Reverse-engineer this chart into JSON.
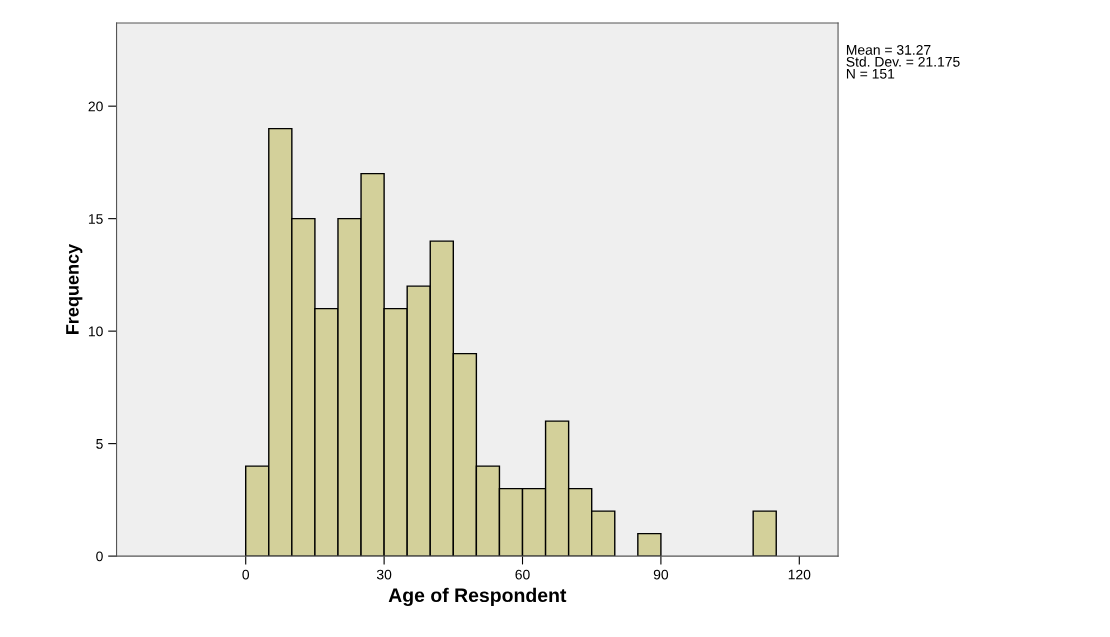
{
  "chart_data": {
    "type": "histogram",
    "xlabel": "Age of Respondent",
    "ylabel": "Frequency",
    "bins": [
      0,
      5,
      10,
      15,
      20,
      25,
      30,
      35,
      40,
      45,
      50,
      55,
      60,
      65,
      70,
      75,
      80,
      85,
      90,
      95,
      100,
      105,
      110,
      115
    ],
    "values": [
      4,
      19,
      15,
      11,
      15,
      17,
      11,
      12,
      14,
      9,
      4,
      3,
      3,
      6,
      3,
      2,
      0,
      1,
      0,
      0,
      0,
      0,
      2
    ],
    "color": "#d3d09a",
    "xlim": [
      -28,
      128.4
    ],
    "xticks": [
      0,
      30,
      60,
      90,
      120
    ],
    "ylim": [
      0,
      23.7
    ],
    "yticks": [
      0,
      5,
      10,
      15,
      20
    ],
    "grid": false,
    "annotations": [
      "Mean = 31.27\nStd. Dev. = 21.175\nN = 151"
    ]
  }
}
